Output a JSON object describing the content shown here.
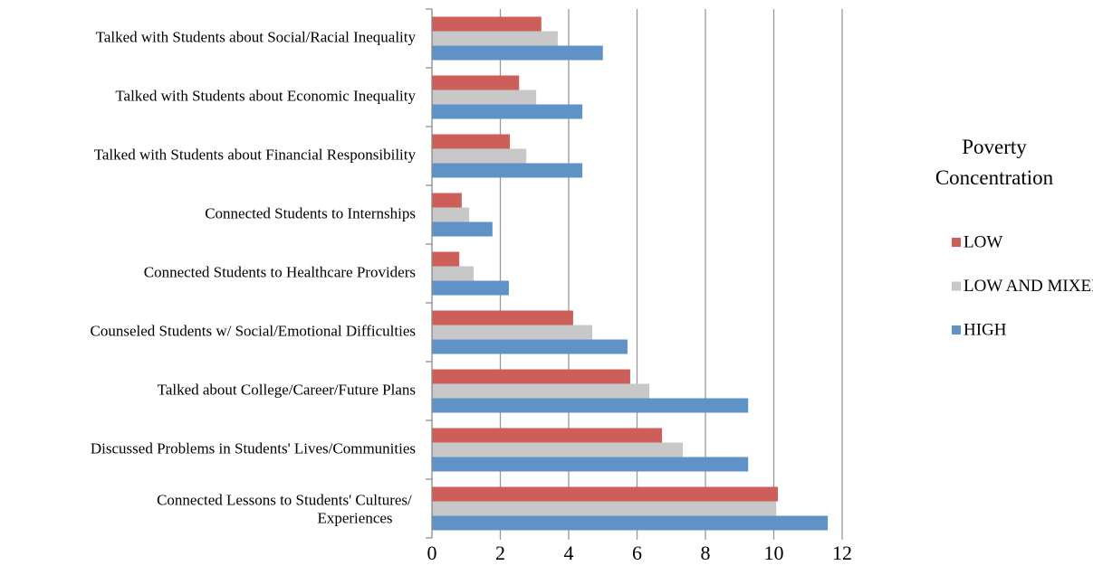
{
  "chart_data": {
    "type": "hbar",
    "categories": [
      "Talked with Students about Social/Racial Inequality",
      "Talked with Students about Economic Inequality",
      "Talked with Students about Financial Responsibility",
      "Connected Students to Internships",
      "Connected Students to Healthcare Providers",
      "Counseled Students w/ Social/Emotional Difficulties",
      "Talked about College/Career/Future Plans",
      "Discussed Problems in Students' Lives/Communities",
      "Connected Lessons to Students' Cultures/ Experiences"
    ],
    "series": [
      {
        "name": "LOW",
        "color": "#cd5f5a",
        "values": [
          3.2,
          2.55,
          2.28,
          0.87,
          0.8,
          4.13,
          5.8,
          6.73,
          10.12
        ]
      },
      {
        "name": "LOW AND MIXED",
        "color": "#c8c8c8",
        "values": [
          3.68,
          3.05,
          2.76,
          1.09,
          1.22,
          4.69,
          6.36,
          7.34,
          10.07
        ]
      },
      {
        "name": "HIGH",
        "color": "#5f93c8",
        "values": [
          5.0,
          4.4,
          4.4,
          1.77,
          2.25,
          5.72,
          9.25,
          9.25,
          11.58
        ]
      }
    ],
    "legend_title": "Poverty Concentration",
    "xlim": [
      0,
      12
    ],
    "xticks": [
      0,
      2,
      4,
      6,
      8,
      10,
      12
    ],
    "grid": true
  }
}
